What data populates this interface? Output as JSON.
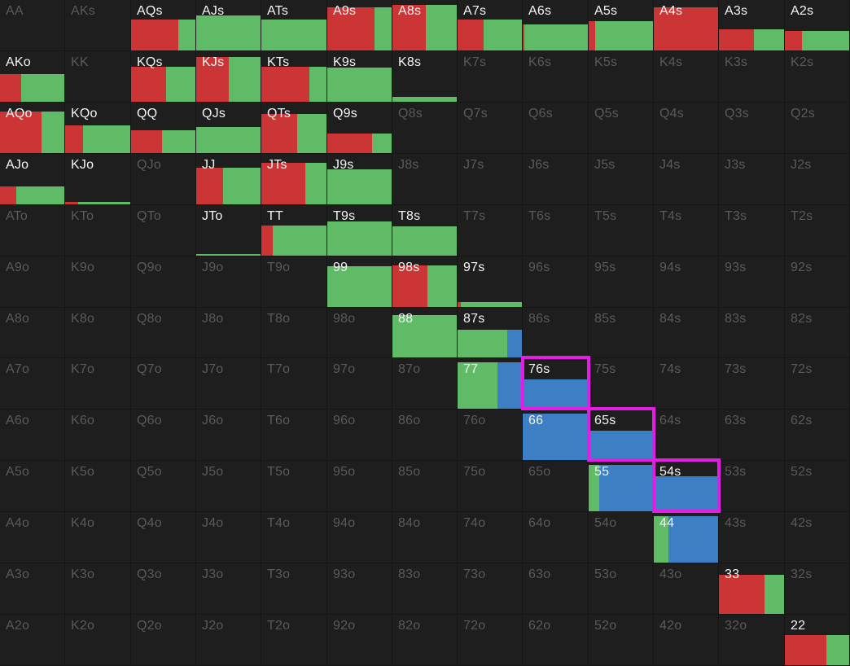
{
  "legend_colors": {
    "raise": "#cc3535",
    "call": "#5fbb65",
    "other": "#3d7fc4",
    "highlight": "#e61be6"
  },
  "grid": {
    "ranks": [
      "A",
      "K",
      "Q",
      "J",
      "T",
      "9",
      "8",
      "7",
      "6",
      "5",
      "4",
      "3",
      "2"
    ],
    "rows": [
      [
        {
          "hand": "AA",
          "active": false
        },
        {
          "hand": "AKs",
          "active": false
        },
        {
          "hand": "AQs",
          "active": true,
          "freq": 0.62,
          "mix": [
            0.73,
            0.27,
            0
          ]
        },
        {
          "hand": "AJs",
          "active": true,
          "freq": 0.7,
          "mix": [
            0,
            1,
            0
          ]
        },
        {
          "hand": "ATs",
          "active": true,
          "freq": 0.62,
          "mix": [
            0,
            1,
            0
          ]
        },
        {
          "hand": "A9s",
          "active": true,
          "freq": 0.85,
          "mix": [
            0.74,
            0.26,
            0
          ]
        },
        {
          "hand": "A8s",
          "active": true,
          "freq": 0.9,
          "mix": [
            0.52,
            0.48,
            0
          ]
        },
        {
          "hand": "A7s",
          "active": true,
          "freq": 0.62,
          "mix": [
            0.4,
            0.6,
            0
          ]
        },
        {
          "hand": "A6s",
          "active": true,
          "freq": 0.52,
          "mix": [
            0.02,
            0.98,
            0
          ]
        },
        {
          "hand": "A5s",
          "active": true,
          "freq": 0.58,
          "mix": [
            0.1,
            0.9,
            0
          ]
        },
        {
          "hand": "A4s",
          "active": true,
          "freq": 0.85,
          "mix": [
            1,
            0,
            0
          ]
        },
        {
          "hand": "A3s",
          "active": true,
          "freq": 0.42,
          "mix": [
            0.54,
            0.46,
            0
          ]
        },
        {
          "hand": "A2s",
          "active": true,
          "freq": 0.38,
          "mix": [
            0.26,
            0.74,
            0
          ]
        }
      ],
      [
        {
          "hand": "AKo",
          "active": true,
          "freq": 0.55,
          "mix": [
            0.33,
            0.67,
            0
          ]
        },
        {
          "hand": "KK",
          "active": false
        },
        {
          "hand": "KQs",
          "active": true,
          "freq": 0.7,
          "mix": [
            0.54,
            0.46,
            0
          ]
        },
        {
          "hand": "KJs",
          "active": true,
          "freq": 0.88,
          "mix": [
            0.5,
            0.5,
            0
          ]
        },
        {
          "hand": "KTs",
          "active": true,
          "freq": 0.7,
          "mix": [
            0.74,
            0.26,
            0
          ]
        },
        {
          "hand": "K9s",
          "active": true,
          "freq": 0.68,
          "mix": [
            0,
            1,
            0
          ]
        },
        {
          "hand": "K8s",
          "active": true,
          "freq": 0.1,
          "mix": [
            0,
            1,
            0
          ]
        },
        {
          "hand": "K7s",
          "active": false
        },
        {
          "hand": "K6s",
          "active": false
        },
        {
          "hand": "K5s",
          "active": false
        },
        {
          "hand": "K4s",
          "active": false
        },
        {
          "hand": "K3s",
          "active": false
        },
        {
          "hand": "K2s",
          "active": false
        }
      ],
      [
        {
          "hand": "AQo",
          "active": true,
          "freq": 0.82,
          "mix": [
            0.64,
            0.36,
            0
          ]
        },
        {
          "hand": "KQo",
          "active": true,
          "freq": 0.55,
          "mix": [
            0.28,
            0.72,
            0
          ]
        },
        {
          "hand": "QQ",
          "active": true,
          "freq": 0.45,
          "mix": [
            0.48,
            0.52,
            0
          ]
        },
        {
          "hand": "QJs",
          "active": true,
          "freq": 0.52,
          "mix": [
            0,
            1,
            0
          ]
        },
        {
          "hand": "QTs",
          "active": true,
          "freq": 0.78,
          "mix": [
            0.55,
            0.45,
            0
          ]
        },
        {
          "hand": "Q9s",
          "active": true,
          "freq": 0.38,
          "mix": [
            0.7,
            0.3,
            0
          ]
        },
        {
          "hand": "Q8s",
          "active": false
        },
        {
          "hand": "Q7s",
          "active": false
        },
        {
          "hand": "Q6s",
          "active": false
        },
        {
          "hand": "Q5s",
          "active": false
        },
        {
          "hand": "Q4s",
          "active": false
        },
        {
          "hand": "Q3s",
          "active": false
        },
        {
          "hand": "Q2s",
          "active": false
        }
      ],
      [
        {
          "hand": "AJo",
          "active": true,
          "freq": 0.36,
          "mix": [
            0.25,
            0.75,
            0
          ]
        },
        {
          "hand": "KJo",
          "active": true,
          "freq": 0.05,
          "mix": [
            0.2,
            0.8,
            0
          ]
        },
        {
          "hand": "QJo",
          "active": false
        },
        {
          "hand": "JJ",
          "active": true,
          "freq": 0.72,
          "mix": [
            0.42,
            0.58,
            0
          ]
        },
        {
          "hand": "JTs",
          "active": true,
          "freq": 0.82,
          "mix": [
            0.67,
            0.33,
            0
          ]
        },
        {
          "hand": "J9s",
          "active": true,
          "freq": 0.7,
          "mix": [
            0,
            1,
            0
          ]
        },
        {
          "hand": "J8s",
          "active": false
        },
        {
          "hand": "J7s",
          "active": false
        },
        {
          "hand": "J6s",
          "active": false
        },
        {
          "hand": "J5s",
          "active": false
        },
        {
          "hand": "J4s",
          "active": false
        },
        {
          "hand": "J3s",
          "active": false
        },
        {
          "hand": "J2s",
          "active": false
        }
      ],
      [
        {
          "hand": "ATo",
          "active": false
        },
        {
          "hand": "KTo",
          "active": false
        },
        {
          "hand": "QTo",
          "active": false
        },
        {
          "hand": "JTo",
          "active": true,
          "freq": 0.03,
          "mix": [
            0,
            1,
            0
          ]
        },
        {
          "hand": "TT",
          "active": true,
          "freq": 0.6,
          "mix": [
            0.18,
            0.82,
            0
          ]
        },
        {
          "hand": "T9s",
          "active": true,
          "freq": 0.67,
          "mix": [
            0,
            1,
            0
          ]
        },
        {
          "hand": "T8s",
          "active": true,
          "freq": 0.58,
          "mix": [
            0,
            1,
            0
          ]
        },
        {
          "hand": "T7s",
          "active": false
        },
        {
          "hand": "T6s",
          "active": false
        },
        {
          "hand": "T5s",
          "active": false
        },
        {
          "hand": "T4s",
          "active": false
        },
        {
          "hand": "T3s",
          "active": false
        },
        {
          "hand": "T2s",
          "active": false
        }
      ],
      [
        {
          "hand": "A9o",
          "active": false
        },
        {
          "hand": "K9o",
          "active": false
        },
        {
          "hand": "Q9o",
          "active": false
        },
        {
          "hand": "J9o",
          "active": false
        },
        {
          "hand": "T9o",
          "active": false
        },
        {
          "hand": "99",
          "active": true,
          "freq": 0.8,
          "mix": [
            0,
            1,
            0
          ]
        },
        {
          "hand": "98s",
          "active": true,
          "freq": 0.82,
          "mix": [
            0.55,
            0.45,
            0
          ]
        },
        {
          "hand": "97s",
          "active": true,
          "freq": 0.1,
          "mix": [
            0.05,
            0.95,
            0
          ]
        },
        {
          "hand": "96s",
          "active": false
        },
        {
          "hand": "95s",
          "active": false
        },
        {
          "hand": "94s",
          "active": false
        },
        {
          "hand": "93s",
          "active": false
        },
        {
          "hand": "92s",
          "active": false
        }
      ],
      [
        {
          "hand": "A8o",
          "active": false
        },
        {
          "hand": "K8o",
          "active": false
        },
        {
          "hand": "Q8o",
          "active": false
        },
        {
          "hand": "J8o",
          "active": false
        },
        {
          "hand": "T8o",
          "active": false
        },
        {
          "hand": "98o",
          "active": false
        },
        {
          "hand": "88",
          "active": true,
          "freq": 0.85,
          "mix": [
            0,
            1,
            0
          ]
        },
        {
          "hand": "87s",
          "active": true,
          "freq": 0.55,
          "mix": [
            0,
            0.77,
            0.23
          ]
        },
        {
          "hand": "86s",
          "active": false
        },
        {
          "hand": "85s",
          "active": false
        },
        {
          "hand": "84s",
          "active": false
        },
        {
          "hand": "83s",
          "active": false
        },
        {
          "hand": "82s",
          "active": false
        }
      ],
      [
        {
          "hand": "A7o",
          "active": false
        },
        {
          "hand": "K7o",
          "active": false
        },
        {
          "hand": "Q7o",
          "active": false
        },
        {
          "hand": "J7o",
          "active": false
        },
        {
          "hand": "T7o",
          "active": false
        },
        {
          "hand": "97o",
          "active": false
        },
        {
          "hand": "87o",
          "active": false
        },
        {
          "hand": "77",
          "active": true,
          "freq": 0.92,
          "mix": [
            0,
            0.62,
            0.38
          ]
        },
        {
          "hand": "76s",
          "active": true,
          "freq": 0.58,
          "mix": [
            0,
            0,
            1
          ]
        },
        {
          "hand": "75s",
          "active": false
        },
        {
          "hand": "74s",
          "active": false
        },
        {
          "hand": "73s",
          "active": false
        },
        {
          "hand": "72s",
          "active": false
        }
      ],
      [
        {
          "hand": "A6o",
          "active": false
        },
        {
          "hand": "K6o",
          "active": false
        },
        {
          "hand": "Q6o",
          "active": false
        },
        {
          "hand": "J6o",
          "active": false
        },
        {
          "hand": "T6o",
          "active": false
        },
        {
          "hand": "96o",
          "active": false
        },
        {
          "hand": "86o",
          "active": false
        },
        {
          "hand": "76o",
          "active": false
        },
        {
          "hand": "66",
          "active": true,
          "freq": 0.92,
          "mix": [
            0,
            0,
            1
          ]
        },
        {
          "hand": "65s",
          "active": true,
          "freq": 0.58,
          "mix": [
            0,
            0,
            1
          ]
        },
        {
          "hand": "64s",
          "active": false
        },
        {
          "hand": "63s",
          "active": false
        },
        {
          "hand": "62s",
          "active": false
        }
      ],
      [
        {
          "hand": "A5o",
          "active": false
        },
        {
          "hand": "K5o",
          "active": false
        },
        {
          "hand": "Q5o",
          "active": false
        },
        {
          "hand": "J5o",
          "active": false
        },
        {
          "hand": "T5o",
          "active": false
        },
        {
          "hand": "95o",
          "active": false
        },
        {
          "hand": "85o",
          "active": false
        },
        {
          "hand": "75o",
          "active": false
        },
        {
          "hand": "65o",
          "active": false
        },
        {
          "hand": "55",
          "active": true,
          "freq": 0.92,
          "mix": [
            0,
            0.16,
            0.84
          ]
        },
        {
          "hand": "54s",
          "active": true,
          "freq": 0.7,
          "mix": [
            0,
            0,
            1
          ]
        },
        {
          "hand": "53s",
          "active": false
        },
        {
          "hand": "52s",
          "active": false
        }
      ],
      [
        {
          "hand": "A4o",
          "active": false
        },
        {
          "hand": "K4o",
          "active": false
        },
        {
          "hand": "Q4o",
          "active": false
        },
        {
          "hand": "J4o",
          "active": false
        },
        {
          "hand": "T4o",
          "active": false
        },
        {
          "hand": "94o",
          "active": false
        },
        {
          "hand": "84o",
          "active": false
        },
        {
          "hand": "74o",
          "active": false
        },
        {
          "hand": "64o",
          "active": false
        },
        {
          "hand": "54o",
          "active": false
        },
        {
          "hand": "44",
          "active": true,
          "freq": 0.92,
          "mix": [
            0,
            0.23,
            0.77
          ]
        },
        {
          "hand": "43s",
          "active": false
        },
        {
          "hand": "42s",
          "active": false
        }
      ],
      [
        {
          "hand": "A3o",
          "active": false
        },
        {
          "hand": "K3o",
          "active": false
        },
        {
          "hand": "Q3o",
          "active": false
        },
        {
          "hand": "J3o",
          "active": false
        },
        {
          "hand": "T3o",
          "active": false
        },
        {
          "hand": "93o",
          "active": false
        },
        {
          "hand": "83o",
          "active": false
        },
        {
          "hand": "73o",
          "active": false
        },
        {
          "hand": "63o",
          "active": false
        },
        {
          "hand": "53o",
          "active": false
        },
        {
          "hand": "43o",
          "active": false
        },
        {
          "hand": "33",
          "active": true,
          "freq": 0.78,
          "mix": [
            0.7,
            0.3,
            0
          ]
        },
        {
          "hand": "32s",
          "active": false
        }
      ],
      [
        {
          "hand": "A2o",
          "active": false
        },
        {
          "hand": "K2o",
          "active": false
        },
        {
          "hand": "Q2o",
          "active": false
        },
        {
          "hand": "J2o",
          "active": false
        },
        {
          "hand": "T2o",
          "active": false
        },
        {
          "hand": "92o",
          "active": false
        },
        {
          "hand": "82o",
          "active": false
        },
        {
          "hand": "72o",
          "active": false
        },
        {
          "hand": "62o",
          "active": false
        },
        {
          "hand": "52o",
          "active": false
        },
        {
          "hand": "42o",
          "active": false
        },
        {
          "hand": "32o",
          "active": false
        },
        {
          "hand": "22",
          "active": true,
          "freq": 0.6,
          "mix": [
            0.64,
            0.36,
            0
          ]
        }
      ]
    ]
  },
  "highlighted_hands": [
    "76s",
    "65s",
    "54s"
  ]
}
